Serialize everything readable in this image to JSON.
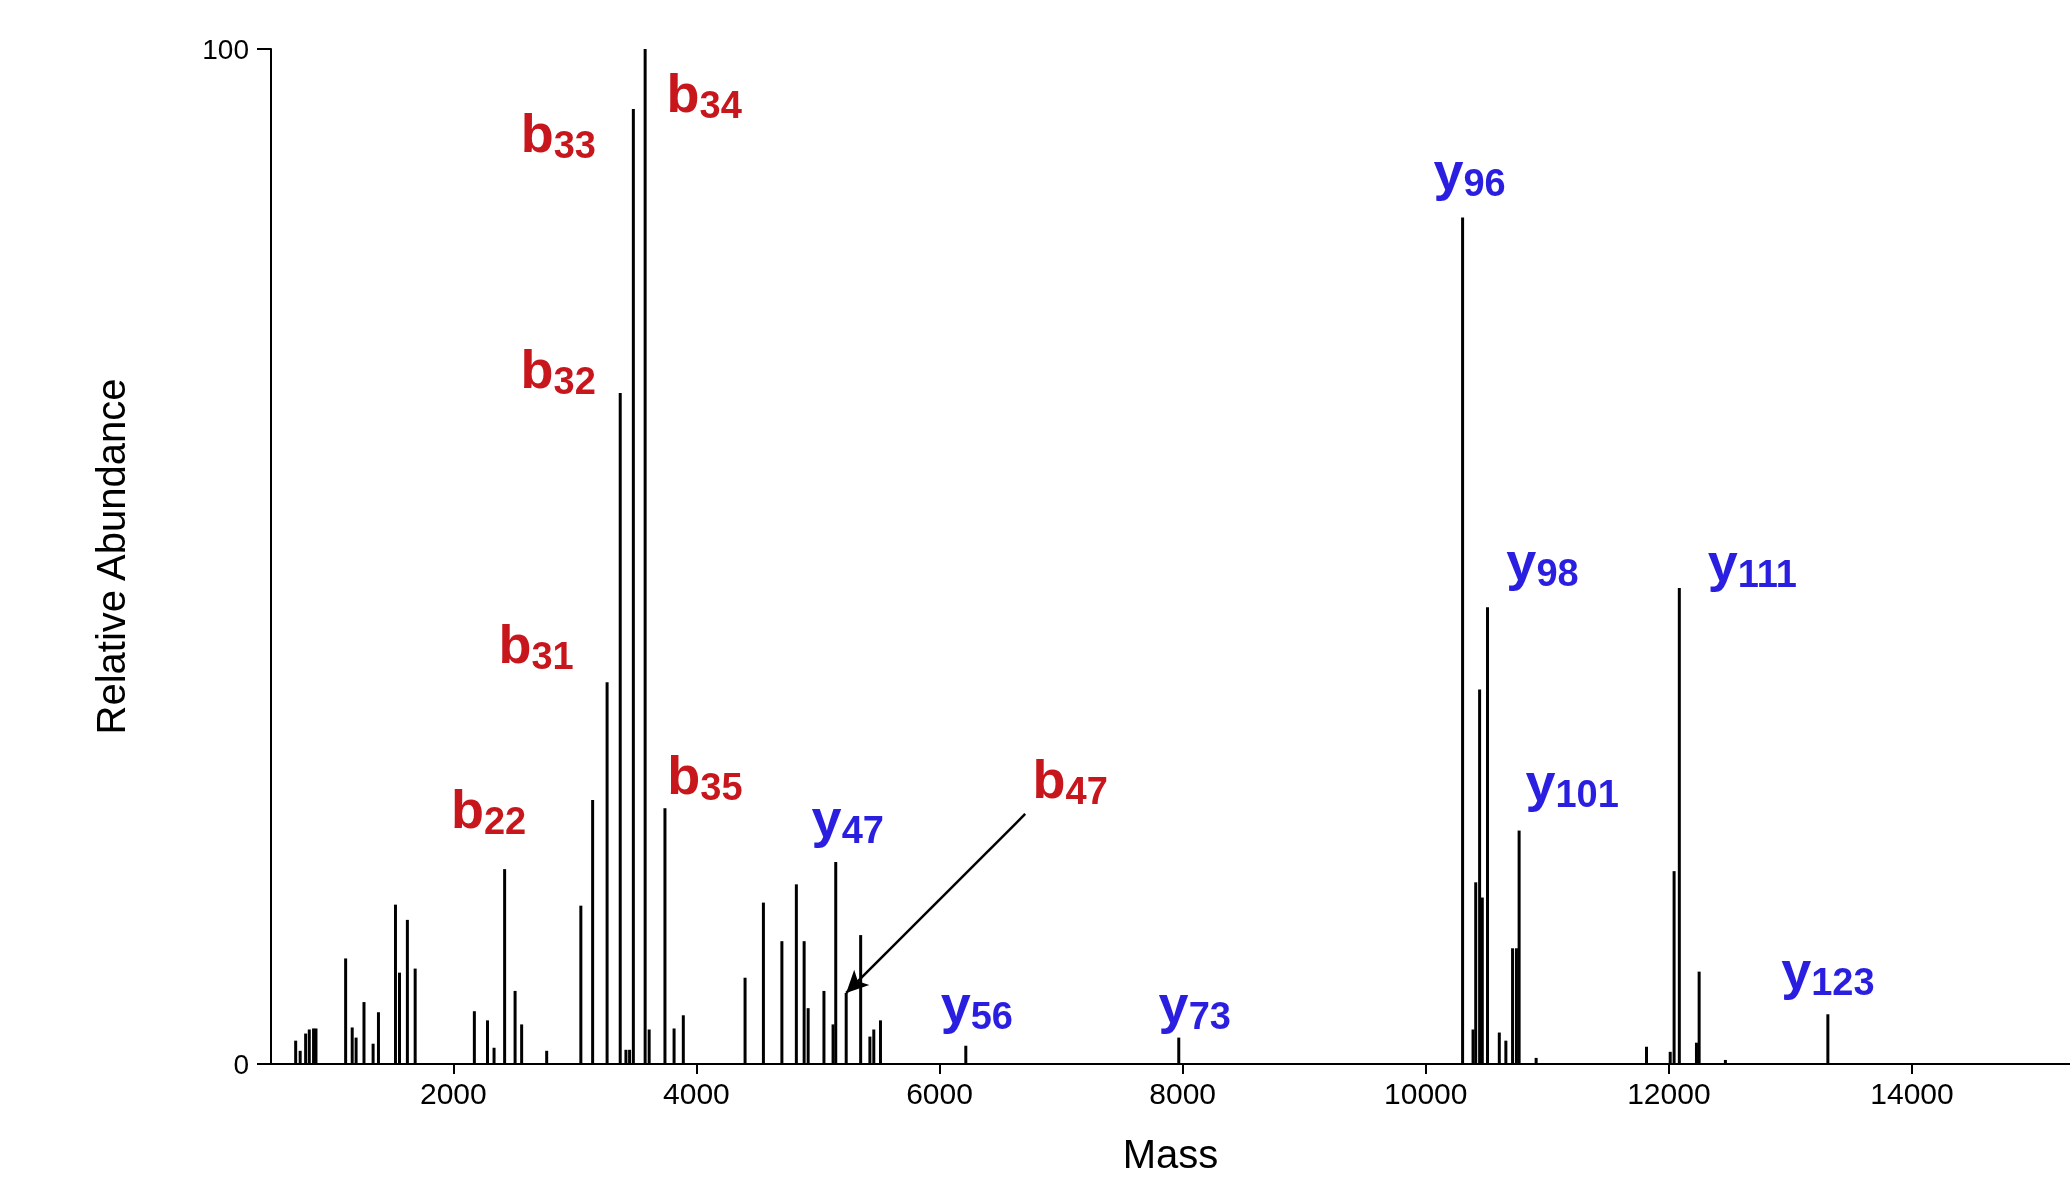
{
  "chart_data": {
    "type": "bar",
    "xlabel": "Mass",
    "ylabel": "Relative Abundance",
    "color": "#000000",
    "x": [
      703,
      740,
      785,
      815,
      850,
      870,
      1114,
      1168,
      1200,
      1265,
      1340,
      1384,
      1524,
      1557,
      1622,
      1686,
      2173,
      2281,
      2335,
      2422,
      2508,
      2562,
      2768,
      3049,
      3146,
      3265,
      3373,
      3420,
      3450,
      3481,
      3578,
      3611,
      3741,
      3816,
      3892,
      4400,
      4551,
      4703,
      4822,
      4886,
      4919,
      5049,
      5124,
      5146,
      5232,
      5351,
      5427,
      5459,
      5514,
      6216,
      7968,
      10303,
      10389,
      10411,
      10443,
      10465,
      10508,
      10605,
      10659,
      10714,
      10746,
      10768,
      10908,
      11816,
      12011,
      12043,
      12086,
      12227,
      12249,
      12465,
      13308
    ],
    "values": [
      2.3,
      1.3,
      3,
      3.4,
      3.5,
      3.5,
      10.4,
      3.6,
      2.6,
      6.1,
      2,
      5.1,
      15.7,
      9,
      14.2,
      9.4,
      5.2,
      4.3,
      1.6,
      19.2,
      7.2,
      3.9,
      1.3,
      15.6,
      26,
      37.6,
      66.1,
      1.4,
      1.4,
      94.1,
      100,
      3.4,
      25.2,
      3.5,
      4.8,
      8.5,
      15.9,
      12.1,
      17.7,
      12.1,
      5.5,
      7.2,
      3.9,
      19.9,
      7,
      12.7,
      2.7,
      3.4,
      4.3,
      1.8,
      2.6,
      83.4,
      3.4,
      17.9,
      36.9,
      16.4,
      45,
      3.1,
      2.3,
      11.4,
      11.4,
      23,
      0.6,
      1.7,
      1.2,
      19,
      46.9,
      2.1,
      9.1,
      0.4,
      4.9
    ],
    "xlim": [
      500,
      15300
    ],
    "xticks": [
      2000,
      4000,
      6000,
      8000,
      10000,
      12000,
      14000
    ],
    "ylim": [
      0,
      100
    ],
    "yticks": [
      0,
      100
    ],
    "grid": false,
    "annotations": [
      {
        "text": "b$_{22}$",
        "x": 2422,
        "y": 19.2
      },
      {
        "text": "b$_{31}$",
        "x": 3265,
        "y": 37.6
      },
      {
        "text": "b$_{32}$",
        "x": 3373,
        "y": 66.1
      },
      {
        "text": "b$_{33}$",
        "x": 3481,
        "y": 94.1
      },
      {
        "text": "b$_{34}$",
        "x": 3578,
        "y": 100
      },
      {
        "text": "b$_{35}$",
        "x": 3741,
        "y": 25.2
      },
      {
        "text": "y$_{47}$",
        "x": 5146,
        "y": 19.9
      },
      {
        "text": "b$_{47}$",
        "x": 5232,
        "y": 7
      },
      {
        "text": "y$_{56}$",
        "x": 6216,
        "y": 1.8
      },
      {
        "text": "y$_{73}$",
        "x": 7968,
        "y": 2.6
      },
      {
        "text": "y$_{96}$",
        "x": 10303,
        "y": 83.4
      },
      {
        "text": "y$_{98}$",
        "x": 10508,
        "y": 45
      },
      {
        "text": "y$_{101}$",
        "x": 10768,
        "y": 23
      },
      {
        "text": "y$_{111}$",
        "x": 12086,
        "y": 46.9
      },
      {
        "text": "y$_{123}$",
        "x": 13308,
        "y": 4.9
      }
    ]
  }
}
